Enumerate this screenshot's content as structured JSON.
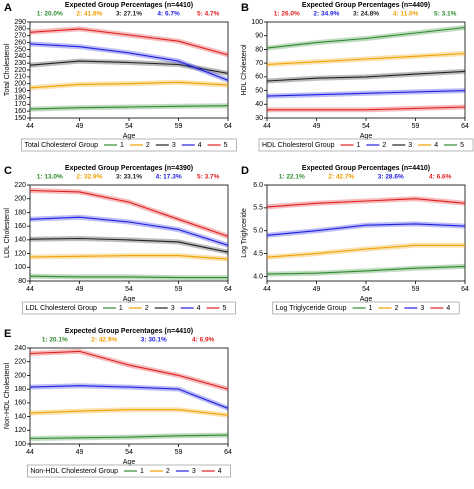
{
  "chart_data": [
    {
      "label": "A",
      "type": "line",
      "title": "Expected Group Percentages (n=4410)",
      "group_percentages": [
        "1: 20.0%",
        "2: 41.8%",
        "3: 27.1%",
        "4: 6.7%",
        "5: 4.7%"
      ],
      "ylabel": "Total Cholesterol",
      "xlabel": "Age",
      "legend_title": "Total Cholesterol Group",
      "x": [
        44,
        49,
        54,
        59,
        64
      ],
      "xlim": [
        44,
        64
      ],
      "xticks": [
        44,
        49,
        54,
        59,
        64
      ],
      "ylim": [
        150,
        290
      ],
      "yticks": [
        150,
        160,
        170,
        180,
        190,
        200,
        210,
        220,
        230,
        240,
        250,
        260,
        270,
        280,
        290
      ],
      "series": [
        {
          "name": "1",
          "color": "#2e8b2e",
          "values": [
            163,
            165,
            166,
            167,
            168
          ]
        },
        {
          "name": "2",
          "color": "#f0a000",
          "values": [
            194,
            199,
            200,
            202,
            198
          ]
        },
        {
          "name": "3",
          "color": "#222222",
          "values": [
            227,
            233,
            231,
            228,
            215
          ]
        },
        {
          "name": "4",
          "color": "#2020e0",
          "values": [
            258,
            254,
            245,
            233,
            205
          ]
        },
        {
          "name": "5",
          "color": "#e02020",
          "values": [
            275,
            280,
            271,
            262,
            242
          ]
        }
      ]
    },
    {
      "label": "B",
      "type": "line",
      "title": "Expected Group Percentages (n=4409)",
      "group_percentages": [
        "1: 26.0%",
        "2: 34.9%",
        "3: 24.8%",
        "4: 11.0%",
        "5: 3.1%"
      ],
      "ylabel": "HDL Cholesterol",
      "xlabel": "Age",
      "legend_title": "HDL Cholesterol Group",
      "x": [
        44,
        49,
        54,
        59,
        64
      ],
      "xlim": [
        44,
        64
      ],
      "xticks": [
        44,
        49,
        54,
        59,
        64
      ],
      "ylim": [
        30,
        100
      ],
      "yticks": [
        30,
        40,
        50,
        60,
        70,
        80,
        90,
        100
      ],
      "series": [
        {
          "name": "1",
          "color": "#e02020",
          "values": [
            36,
            36,
            36,
            37,
            38
          ]
        },
        {
          "name": "2",
          "color": "#2020e0",
          "values": [
            46,
            47,
            48,
            49,
            50
          ]
        },
        {
          "name": "3",
          "color": "#222222",
          "values": [
            57,
            59,
            60,
            62,
            64
          ]
        },
        {
          "name": "4",
          "color": "#f0a000",
          "values": [
            69,
            71,
            73,
            75,
            77
          ]
        },
        {
          "name": "5",
          "color": "#2e8b2e",
          "values": [
            81,
            85,
            88,
            92,
            96
          ]
        }
      ]
    },
    {
      "label": "C",
      "type": "line",
      "title": "Expected Group Percentages (n=4390)",
      "group_percentages": [
        "1: 13.0%",
        "2: 32.9%",
        "3: 33.1%",
        "4: 17.3%",
        "5: 3.7%"
      ],
      "ylabel": "LDL Cholesterol",
      "xlabel": "Age",
      "legend_title": "LDL Cholesterol Group",
      "x": [
        44,
        49,
        54,
        59,
        64
      ],
      "xlim": [
        44,
        64
      ],
      "xticks": [
        44,
        49,
        54,
        59,
        64
      ],
      "ylim": [
        80,
        220
      ],
      "yticks": [
        80,
        100,
        120,
        140,
        160,
        180,
        200,
        220
      ],
      "series": [
        {
          "name": "1",
          "color": "#2e8b2e",
          "values": [
            87,
            86,
            86,
            85,
            85
          ]
        },
        {
          "name": "2",
          "color": "#f0a000",
          "values": [
            115,
            116,
            117,
            117,
            112
          ]
        },
        {
          "name": "3",
          "color": "#222222",
          "values": [
            141,
            142,
            140,
            137,
            122
          ]
        },
        {
          "name": "4",
          "color": "#2020e0",
          "values": [
            170,
            173,
            166,
            155,
            132
          ]
        },
        {
          "name": "5",
          "color": "#e02020",
          "values": [
            212,
            210,
            195,
            170,
            145
          ]
        }
      ]
    },
    {
      "label": "D",
      "type": "line",
      "title": "Expected Group Percentages (n=4410)",
      "group_percentages": [
        "1: 22.1%",
        "2: 42.7%",
        "3: 28.6%",
        "4: 6.6%"
      ],
      "ylabel": "Log Triglyceride",
      "xlabel": "Age",
      "legend_title": "Log Triglyceride Group",
      "x": [
        44,
        49,
        54,
        59,
        64
      ],
      "xlim": [
        44,
        64
      ],
      "xticks": [
        44,
        49,
        54,
        59,
        64
      ],
      "ylim": [
        3.9,
        6.0
      ],
      "yticks": [
        {
          "value": 4,
          "label": "4.0"
        },
        4.5,
        {
          "value": 5,
          "label": "5.0"
        },
        5.5,
        {
          "value": 6,
          "label": "6.0"
        }
      ],
      "series": [
        {
          "name": "1",
          "color": "#2e8b2e",
          "values": [
            4.05,
            4.07,
            4.12,
            4.18,
            4.22
          ]
        },
        {
          "name": "2",
          "color": "#f0a000",
          "values": [
            4.42,
            4.5,
            4.6,
            4.68,
            4.68
          ]
        },
        {
          "name": "3",
          "color": "#2020e0",
          "values": [
            4.9,
            5.0,
            5.12,
            5.15,
            5.1
          ]
        },
        {
          "name": "4",
          "color": "#e02020",
          "values": [
            5.52,
            5.6,
            5.65,
            5.7,
            5.6
          ]
        }
      ]
    },
    {
      "label": "E",
      "type": "line",
      "title": "Expected Group Percentages (n=4410)",
      "group_percentages": [
        "1: 20.1%",
        "2: 42.9%",
        "3: 30.1%",
        "4: 6.9%"
      ],
      "ylabel": "Non-HDL Cholesterol",
      "xlabel": "Age",
      "legend_title": "Non-HDL Cholesterol Group",
      "x": [
        44,
        49,
        54,
        59,
        64
      ],
      "xlim": [
        44,
        64
      ],
      "xticks": [
        44,
        49,
        54,
        59,
        64
      ],
      "ylim": [
        100,
        240
      ],
      "yticks": [
        100,
        120,
        140,
        160,
        180,
        200,
        220,
        240
      ],
      "series": [
        {
          "name": "1",
          "color": "#2e8b2e",
          "values": [
            108,
            109,
            110,
            112,
            113
          ]
        },
        {
          "name": "2",
          "color": "#f0a000",
          "values": [
            145,
            148,
            150,
            150,
            142
          ]
        },
        {
          "name": "3",
          "color": "#2020e0",
          "values": [
            183,
            185,
            183,
            180,
            152
          ]
        },
        {
          "name": "4",
          "color": "#e02020",
          "values": [
            232,
            235,
            215,
            200,
            180
          ]
        }
      ]
    }
  ]
}
